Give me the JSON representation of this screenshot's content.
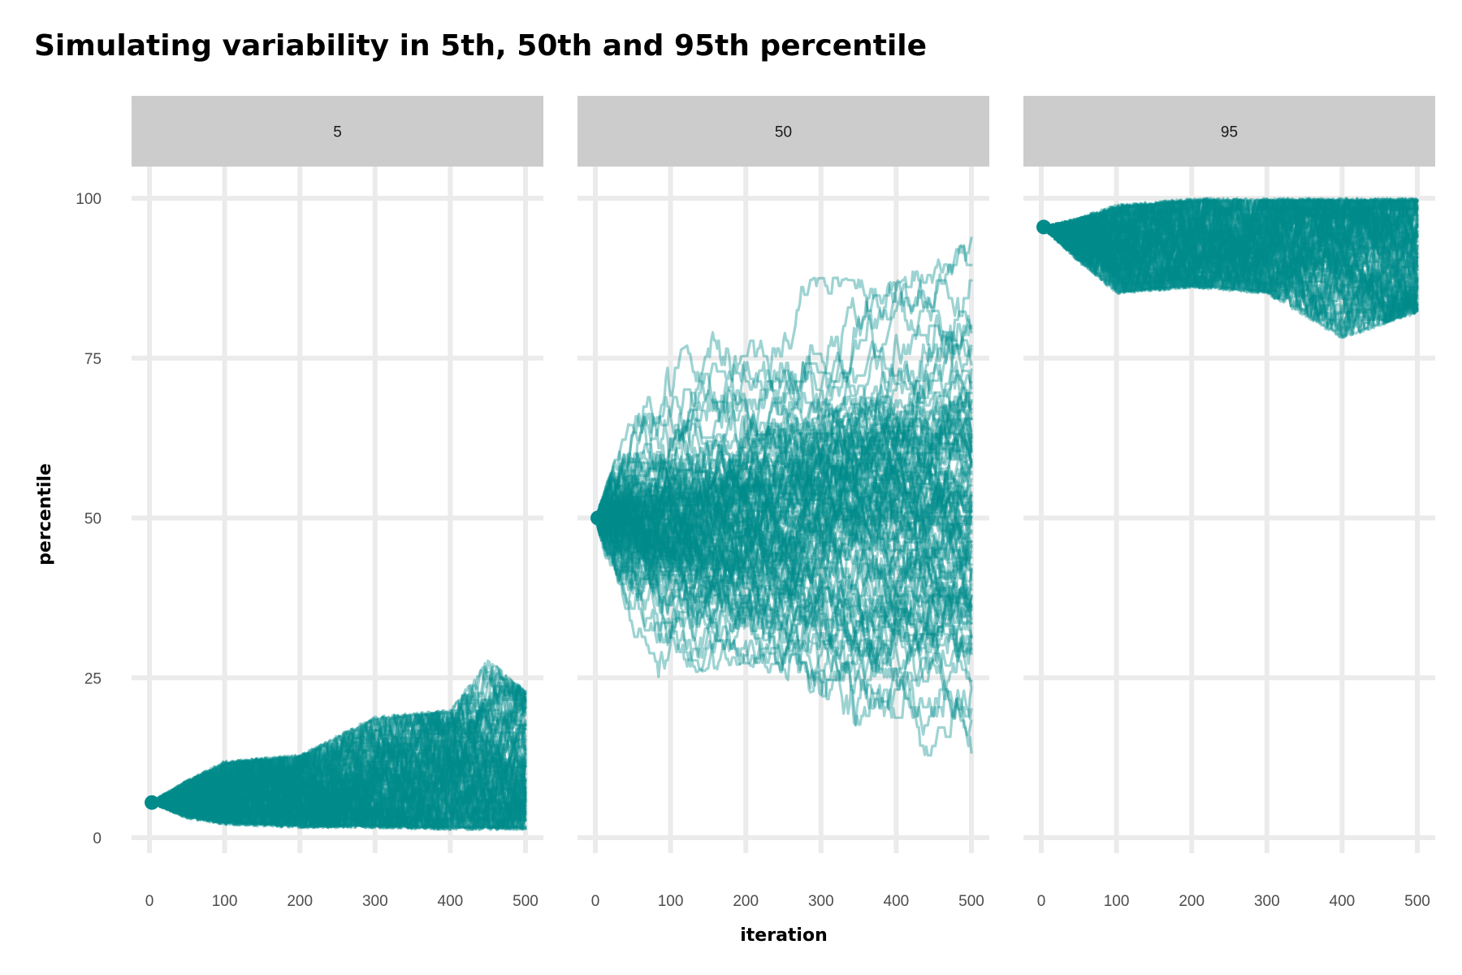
{
  "chart_data": {
    "type": "line",
    "title": "Simulating variability in 5th, 50th and 95th percentile",
    "xlabel": "iteration",
    "ylabel": "percentile",
    "xlim": [
      0,
      500
    ],
    "ylim": [
      0,
      100
    ],
    "x_ticks": [
      "0",
      "100",
      "200",
      "300",
      "400",
      "500"
    ],
    "y_ticks": [
      "0",
      "25",
      "50",
      "75",
      "100"
    ],
    "grid": true,
    "line_color": "#008B8B",
    "line_opacity": 0.38,
    "n_simulations": 100,
    "n_iterations": 500,
    "facets": [
      {
        "label": "5",
        "start": 5.5,
        "end_range_approx": [
          1,
          23
        ],
        "upper_envelope": [
          [
            0,
            5.5
          ],
          [
            50,
            9
          ],
          [
            100,
            12
          ],
          [
            200,
            13
          ],
          [
            300,
            19
          ],
          [
            400,
            20
          ],
          [
            450,
            28
          ],
          [
            500,
            23
          ]
        ],
        "lower_envelope": [
          [
            0,
            5.5
          ],
          [
            50,
            3
          ],
          [
            100,
            2
          ],
          [
            200,
            1.5
          ],
          [
            300,
            1.5
          ],
          [
            400,
            1.2
          ],
          [
            500,
            1.2
          ]
        ]
      },
      {
        "label": "50",
        "start": 50,
        "end_range_approx": [
          13,
          94
        ],
        "upper_envelope": [
          [
            0,
            50
          ],
          [
            50,
            68
          ],
          [
            100,
            75
          ],
          [
            200,
            86
          ],
          [
            300,
            88
          ],
          [
            400,
            87
          ],
          [
            500,
            94
          ]
        ],
        "lower_envelope": [
          [
            0,
            50
          ],
          [
            50,
            25
          ],
          [
            100,
            25
          ],
          [
            200,
            27
          ],
          [
            300,
            22
          ],
          [
            400,
            12
          ],
          [
            500,
            13
          ]
        ]
      },
      {
        "label": "95",
        "start": 95.5,
        "end_range_approx": [
          82,
          100
        ],
        "upper_envelope": [
          [
            0,
            95.5
          ],
          [
            50,
            97
          ],
          [
            100,
            99
          ],
          [
            200,
            100
          ],
          [
            300,
            100
          ],
          [
            400,
            100
          ],
          [
            500,
            100
          ]
        ],
        "lower_envelope": [
          [
            0,
            95.5
          ],
          [
            50,
            90
          ],
          [
            100,
            85
          ],
          [
            200,
            86
          ],
          [
            300,
            85
          ],
          [
            400,
            78
          ],
          [
            500,
            82
          ]
        ]
      }
    ]
  }
}
